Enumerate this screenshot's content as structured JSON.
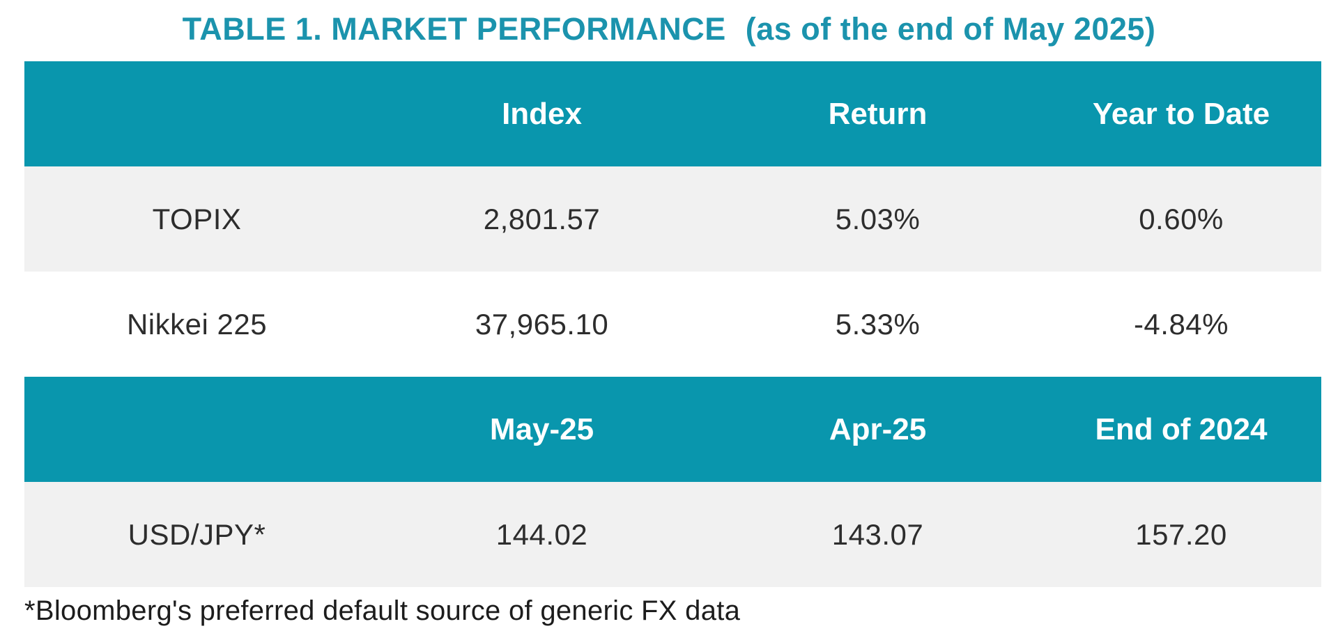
{
  "title": {
    "main": "TABLE 1. MARKET PERFORMANCE",
    "suffix": "(as of the end of May 2025)"
  },
  "chart_data": {
    "type": "table",
    "title": "TABLE 1. MARKET PERFORMANCE (as of the end of May 2025)",
    "sections": [
      {
        "columns": [
          "",
          "Index",
          "Return",
          "Year to Date"
        ],
        "rows": [
          [
            "TOPIX",
            "2,801.57",
            "5.03%",
            "0.60%"
          ],
          [
            "Nikkei 225",
            "37,965.10",
            "5.33%",
            "-4.84%"
          ]
        ]
      },
      {
        "columns": [
          "",
          "May-25",
          "Apr-25",
          "End of 2024"
        ],
        "rows": [
          [
            "USD/JPY*",
            "144.02",
            "143.07",
            "157.20"
          ]
        ]
      }
    ],
    "footnote": "*Bloomberg's preferred default source of generic FX data"
  },
  "colors": {
    "header_band_teal": "#0996ad",
    "title_teal": "#1b93ad",
    "header_text": "#ffffff",
    "row_gray": "#f1f1f1",
    "row_white": "#ffffff",
    "body_text": "#2d2d2d"
  }
}
